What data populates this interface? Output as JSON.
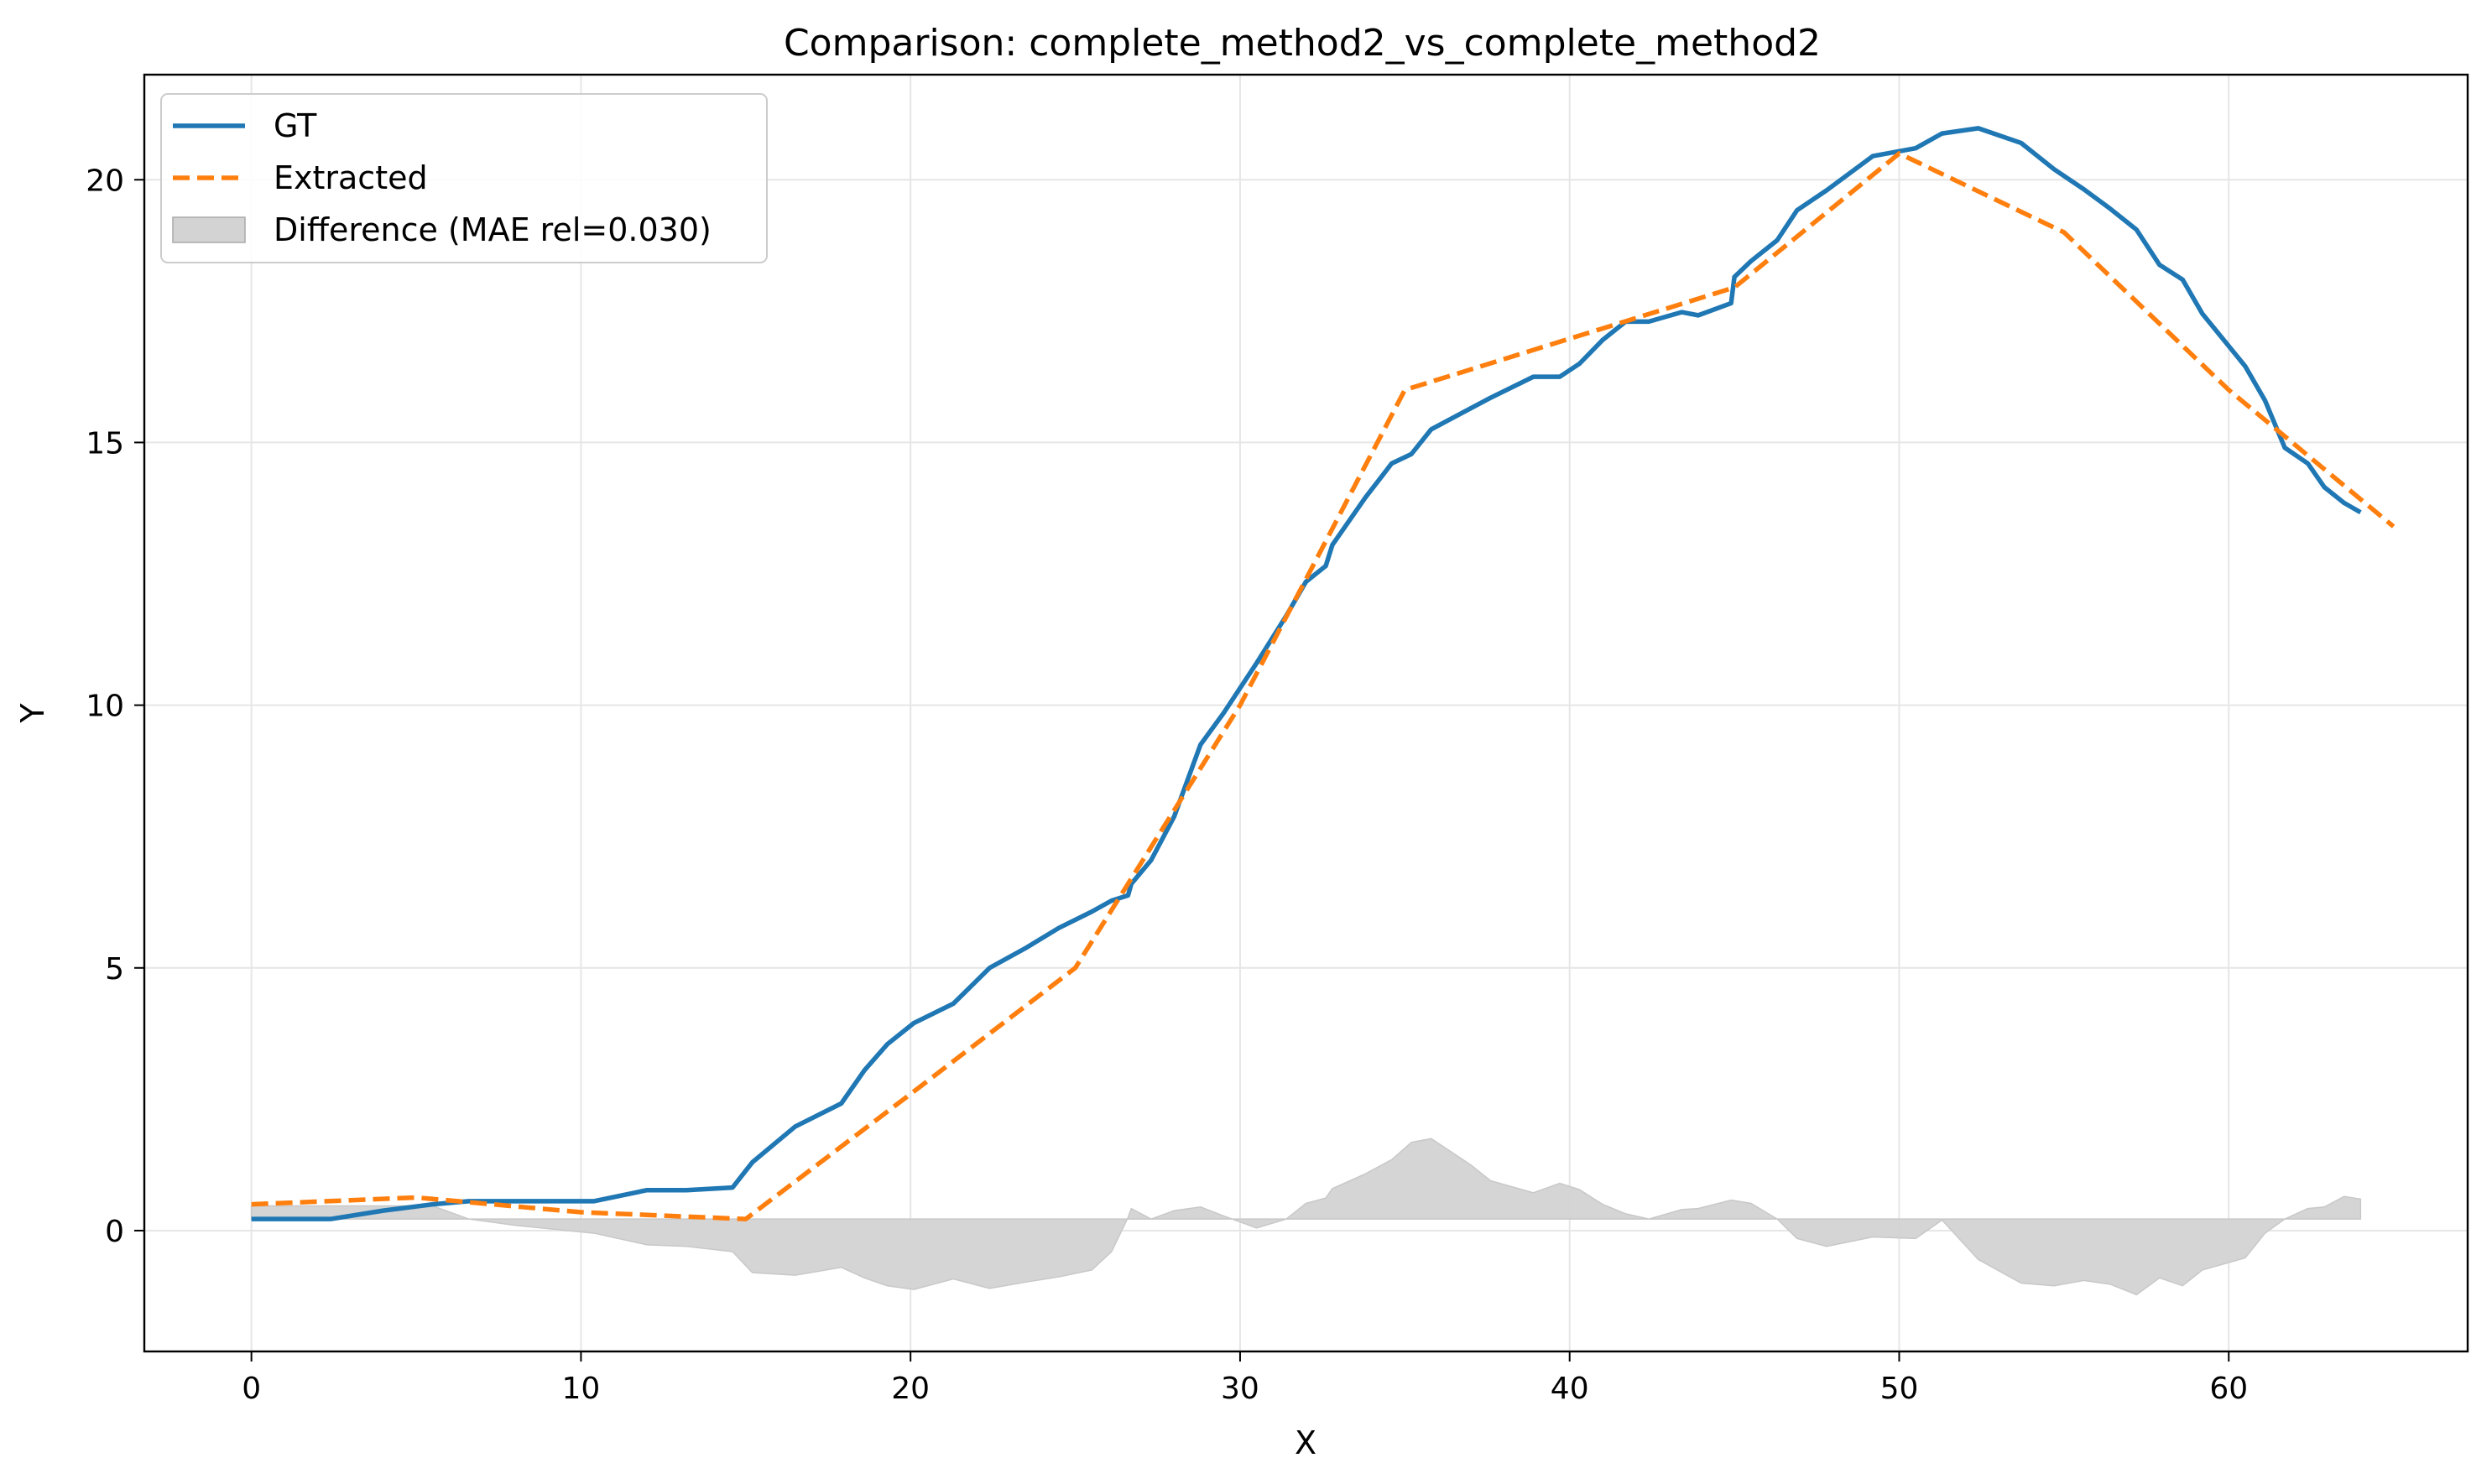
{
  "chart_data": {
    "type": "line",
    "title": "Comparison: complete_method2_vs_complete_method2",
    "xlabel": "X",
    "ylabel": "Y",
    "xlim": [
      -3.25,
      67.25
    ],
    "ylim": [
      -2.3,
      22.0
    ],
    "xticks": [
      0,
      10,
      20,
      30,
      40,
      50,
      60
    ],
    "yticks": [
      0,
      5,
      10,
      15,
      20
    ],
    "grid": true,
    "legend_position": "top-left",
    "colors": {
      "gt": "#1f77b4",
      "extracted": "#ff7f0e",
      "difference": "#d3d3d3",
      "grid": "#e6e6e6"
    },
    "series": [
      {
        "name": "GT",
        "style": "solid",
        "points": [
          [
            0,
            0.22
          ],
          [
            1,
            0.22
          ],
          [
            2.4,
            0.22
          ],
          [
            4,
            0.38
          ],
          [
            5.5,
            0.5
          ],
          [
            6.6,
            0.56
          ],
          [
            8,
            0.56
          ],
          [
            10.4,
            0.56
          ],
          [
            12,
            0.77
          ],
          [
            13.2,
            0.77
          ],
          [
            14.6,
            0.82
          ],
          [
            15.2,
            1.3
          ],
          [
            16.5,
            1.98
          ],
          [
            17.9,
            2.42
          ],
          [
            18.6,
            3.05
          ],
          [
            19.3,
            3.55
          ],
          [
            20.1,
            3.95
          ],
          [
            21.3,
            4.32
          ],
          [
            22.4,
            5.0
          ],
          [
            23.5,
            5.38
          ],
          [
            24.5,
            5.76
          ],
          [
            25.5,
            6.07
          ],
          [
            26.1,
            6.28
          ],
          [
            26.6,
            6.38
          ],
          [
            26.7,
            6.6
          ],
          [
            27.3,
            7.05
          ],
          [
            28.0,
            7.88
          ],
          [
            28.8,
            9.25
          ],
          [
            29.5,
            9.85
          ],
          [
            30.5,
            10.8
          ],
          [
            31.4,
            11.7
          ],
          [
            32.0,
            12.35
          ],
          [
            32.6,
            12.65
          ],
          [
            32.8,
            13.05
          ],
          [
            33.8,
            13.95
          ],
          [
            34.6,
            14.6
          ],
          [
            35.2,
            14.78
          ],
          [
            35.8,
            15.25
          ],
          [
            37.0,
            15.65
          ],
          [
            37.6,
            15.85
          ],
          [
            38.9,
            16.25
          ],
          [
            39.7,
            16.25
          ],
          [
            40.3,
            16.5
          ],
          [
            41.0,
            16.95
          ],
          [
            41.7,
            17.3
          ],
          [
            42.4,
            17.3
          ],
          [
            43.4,
            17.48
          ],
          [
            43.9,
            17.42
          ],
          [
            44.9,
            17.65
          ],
          [
            45.0,
            18.15
          ],
          [
            45.5,
            18.45
          ],
          [
            46.3,
            18.85
          ],
          [
            46.9,
            19.42
          ],
          [
            47.8,
            19.8
          ],
          [
            49.2,
            20.45
          ],
          [
            50.5,
            20.6
          ],
          [
            51.3,
            20.88
          ],
          [
            52.4,
            20.98
          ],
          [
            53.7,
            20.7
          ],
          [
            54.7,
            20.2
          ],
          [
            55.6,
            19.82
          ],
          [
            56.4,
            19.45
          ],
          [
            57.2,
            19.05
          ],
          [
            57.9,
            18.38
          ],
          [
            58.6,
            18.1
          ],
          [
            59.2,
            17.45
          ],
          [
            60.5,
            16.45
          ],
          [
            61.1,
            15.8
          ],
          [
            61.7,
            14.9
          ],
          [
            62.4,
            14.6
          ],
          [
            62.9,
            14.15
          ],
          [
            63.5,
            13.85
          ],
          [
            64,
            13.67
          ]
        ]
      },
      {
        "name": "Extracted",
        "style": "dashed",
        "points": [
          [
            0,
            0.5
          ],
          [
            5,
            0.63
          ],
          [
            10,
            0.35
          ],
          [
            15,
            0.22
          ],
          [
            20,
            2.6
          ],
          [
            25,
            5.0
          ],
          [
            30,
            10.0
          ],
          [
            35,
            16.0
          ],
          [
            45,
            17.95
          ],
          [
            50,
            20.5
          ],
          [
            55,
            19.0
          ],
          [
            60,
            16.0
          ],
          [
            65,
            13.4
          ]
        ]
      }
    ],
    "difference": {
      "name": "Difference (MAE rel=0.030)",
      "baseline": 0.22,
      "points": [
        [
          0,
          0.47
        ],
        [
          5.5,
          0.47
        ],
        [
          6.6,
          0.22
        ],
        [
          8,
          0.1
        ],
        [
          10.4,
          -0.05
        ],
        [
          12,
          -0.27
        ],
        [
          13.2,
          -0.3
        ],
        [
          14.6,
          -0.4
        ],
        [
          15.2,
          -0.8
        ],
        [
          16.5,
          -0.85
        ],
        [
          17.9,
          -0.7
        ],
        [
          18.6,
          -0.9
        ],
        [
          19.3,
          -1.05
        ],
        [
          20.1,
          -1.12
        ],
        [
          21.3,
          -0.92
        ],
        [
          22.4,
          -1.1
        ],
        [
          23.5,
          -0.98
        ],
        [
          24.5,
          -0.88
        ],
        [
          25.5,
          -0.75
        ],
        [
          26.1,
          -0.4
        ],
        [
          26.6,
          0.25
        ],
        [
          26.7,
          0.42
        ],
        [
          27.3,
          0.22
        ],
        [
          28.0,
          0.38
        ],
        [
          28.8,
          0.45
        ],
        [
          29.5,
          0.28
        ],
        [
          30.5,
          0.05
        ],
        [
          31.4,
          0.22
        ],
        [
          32.0,
          0.52
        ],
        [
          32.6,
          0.62
        ],
        [
          32.8,
          0.8
        ],
        [
          33.8,
          1.08
        ],
        [
          34.6,
          1.35
        ],
        [
          35.2,
          1.68
        ],
        [
          35.8,
          1.75
        ],
        [
          37.0,
          1.25
        ],
        [
          37.6,
          0.95
        ],
        [
          38.9,
          0.72
        ],
        [
          39.7,
          0.9
        ],
        [
          40.3,
          0.78
        ],
        [
          41.0,
          0.5
        ],
        [
          41.7,
          0.32
        ],
        [
          42.4,
          0.22
        ],
        [
          43.4,
          0.4
        ],
        [
          43.9,
          0.42
        ],
        [
          44.9,
          0.58
        ],
        [
          45.0,
          0.57
        ],
        [
          45.5,
          0.52
        ],
        [
          46.3,
          0.22
        ],
        [
          46.9,
          -0.15
        ],
        [
          47.8,
          -0.3
        ],
        [
          49.2,
          -0.12
        ],
        [
          50.5,
          -0.15
        ],
        [
          51.3,
          0.2
        ],
        [
          52.4,
          -0.55
        ],
        [
          53.7,
          -1.0
        ],
        [
          54.7,
          -1.05
        ],
        [
          55.6,
          -0.95
        ],
        [
          56.4,
          -1.02
        ],
        [
          57.2,
          -1.22
        ],
        [
          57.9,
          -0.9
        ],
        [
          58.6,
          -1.05
        ],
        [
          59.2,
          -0.75
        ],
        [
          60.5,
          -0.52
        ],
        [
          61.1,
          -0.05
        ],
        [
          61.7,
          0.22
        ],
        [
          62.4,
          0.42
        ],
        [
          62.9,
          0.45
        ],
        [
          63.5,
          0.65
        ],
        [
          64,
          0.6
        ]
      ]
    },
    "legend": [
      {
        "label": "GT",
        "style": "solid"
      },
      {
        "label": "Extracted",
        "style": "dashed"
      },
      {
        "label": "Difference (MAE rel=0.030)",
        "style": "fill"
      }
    ]
  }
}
